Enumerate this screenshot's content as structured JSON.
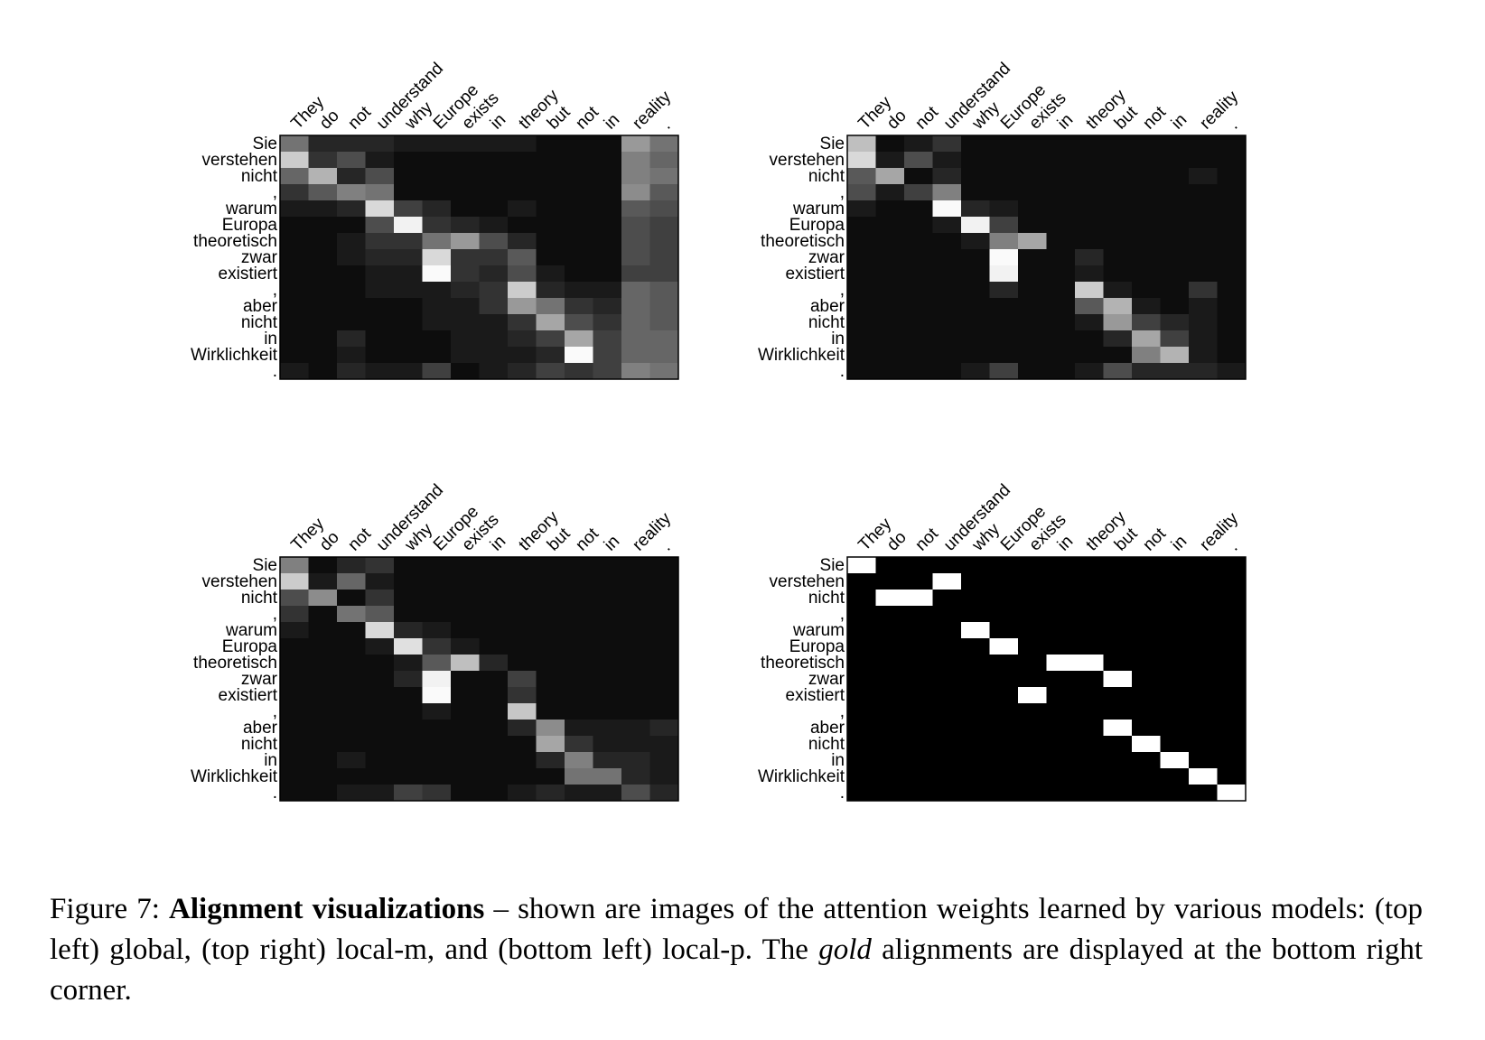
{
  "source_words": [
    "They",
    "do",
    "not",
    "understand",
    "why",
    "Europe",
    "exists",
    "in",
    "theory",
    "but",
    "not",
    "in",
    "reality",
    "."
  ],
  "target_words": [
    "Sie",
    "verstehen",
    "nicht",
    ",",
    "warum",
    "Europa",
    "theoretisch",
    "zwar",
    "existiert",
    ",",
    "aber",
    "nicht",
    "in",
    "Wirklichkeit",
    "."
  ],
  "caption": {
    "lead": "Figure 7: ",
    "bold": "Alignment visualizations",
    "mid": " – shown are images of the attention weights learned by various models: (top left) global, (top right) local-m, and (bottom left) local-p. The ",
    "italic": "gold",
    "tail": " alignments are displayed at the bottom right corner."
  },
  "panels": [
    {
      "id": "global",
      "weights": [
        [
          0.45,
          0.15,
          0.15,
          0.15,
          0.1,
          0.1,
          0.1,
          0.1,
          0.1,
          0.05,
          0.05,
          0.05,
          0.6,
          0.45
        ],
        [
          0.8,
          0.2,
          0.3,
          0.1,
          0.05,
          0.05,
          0.05,
          0.05,
          0.05,
          0.05,
          0.05,
          0.05,
          0.5,
          0.4
        ],
        [
          0.4,
          0.7,
          0.15,
          0.3,
          0.05,
          0.05,
          0.05,
          0.05,
          0.05,
          0.05,
          0.05,
          0.05,
          0.5,
          0.45
        ],
        [
          0.2,
          0.35,
          0.5,
          0.45,
          0.05,
          0.05,
          0.05,
          0.05,
          0.05,
          0.05,
          0.05,
          0.05,
          0.55,
          0.35
        ],
        [
          0.1,
          0.1,
          0.15,
          0.85,
          0.25,
          0.15,
          0.05,
          0.05,
          0.1,
          0.05,
          0.05,
          0.05,
          0.35,
          0.3
        ],
        [
          0.05,
          0.05,
          0.05,
          0.3,
          0.95,
          0.2,
          0.15,
          0.1,
          0.05,
          0.05,
          0.05,
          0.05,
          0.3,
          0.25
        ],
        [
          0.05,
          0.05,
          0.1,
          0.2,
          0.2,
          0.45,
          0.6,
          0.3,
          0.15,
          0.05,
          0.05,
          0.05,
          0.3,
          0.25
        ],
        [
          0.05,
          0.05,
          0.1,
          0.15,
          0.15,
          0.85,
          0.2,
          0.2,
          0.35,
          0.05,
          0.05,
          0.05,
          0.3,
          0.25
        ],
        [
          0.05,
          0.05,
          0.05,
          0.1,
          0.1,
          0.98,
          0.2,
          0.15,
          0.3,
          0.1,
          0.05,
          0.05,
          0.25,
          0.25
        ],
        [
          0.05,
          0.05,
          0.05,
          0.1,
          0.1,
          0.1,
          0.15,
          0.2,
          0.8,
          0.15,
          0.1,
          0.1,
          0.4,
          0.35
        ],
        [
          0.05,
          0.05,
          0.05,
          0.05,
          0.05,
          0.1,
          0.1,
          0.2,
          0.6,
          0.45,
          0.2,
          0.15,
          0.4,
          0.35
        ],
        [
          0.05,
          0.05,
          0.05,
          0.05,
          0.05,
          0.1,
          0.1,
          0.1,
          0.2,
          0.65,
          0.3,
          0.2,
          0.4,
          0.35
        ],
        [
          0.05,
          0.05,
          0.15,
          0.05,
          0.05,
          0.05,
          0.1,
          0.1,
          0.15,
          0.25,
          0.65,
          0.25,
          0.4,
          0.4
        ],
        [
          0.05,
          0.05,
          0.1,
          0.05,
          0.05,
          0.05,
          0.1,
          0.1,
          0.1,
          0.15,
          0.98,
          0.25,
          0.4,
          0.4
        ],
        [
          0.1,
          0.05,
          0.15,
          0.1,
          0.1,
          0.25,
          0.05,
          0.1,
          0.15,
          0.25,
          0.2,
          0.25,
          0.5,
          0.45
        ]
      ]
    },
    {
      "id": "local-m",
      "weights": [
        [
          0.75,
          0.05,
          0.1,
          0.2,
          0.05,
          0.05,
          0.05,
          0.05,
          0.05,
          0.05,
          0.05,
          0.05,
          0.05,
          0.05
        ],
        [
          0.85,
          0.1,
          0.3,
          0.1,
          0.05,
          0.05,
          0.05,
          0.05,
          0.05,
          0.05,
          0.05,
          0.05,
          0.05,
          0.05
        ],
        [
          0.35,
          0.65,
          0.05,
          0.15,
          0.05,
          0.05,
          0.05,
          0.05,
          0.05,
          0.05,
          0.05,
          0.05,
          0.1,
          0.05
        ],
        [
          0.3,
          0.1,
          0.25,
          0.5,
          0.05,
          0.05,
          0.05,
          0.05,
          0.05,
          0.05,
          0.05,
          0.05,
          0.05,
          0.05
        ],
        [
          0.1,
          0.05,
          0.05,
          0.98,
          0.15,
          0.1,
          0.05,
          0.05,
          0.05,
          0.05,
          0.05,
          0.05,
          0.05,
          0.05
        ],
        [
          0.05,
          0.05,
          0.05,
          0.1,
          0.95,
          0.25,
          0.05,
          0.05,
          0.05,
          0.05,
          0.05,
          0.05,
          0.05,
          0.05
        ],
        [
          0.05,
          0.05,
          0.05,
          0.05,
          0.1,
          0.5,
          0.65,
          0.05,
          0.05,
          0.05,
          0.05,
          0.05,
          0.05,
          0.05
        ],
        [
          0.05,
          0.05,
          0.05,
          0.05,
          0.05,
          0.98,
          0.05,
          0.05,
          0.15,
          0.05,
          0.05,
          0.05,
          0.05,
          0.05
        ],
        [
          0.05,
          0.05,
          0.05,
          0.05,
          0.05,
          0.95,
          0.05,
          0.05,
          0.1,
          0.05,
          0.05,
          0.05,
          0.05,
          0.05
        ],
        [
          0.05,
          0.05,
          0.05,
          0.05,
          0.05,
          0.15,
          0.05,
          0.05,
          0.8,
          0.1,
          0.05,
          0.05,
          0.2,
          0.05
        ],
        [
          0.05,
          0.05,
          0.05,
          0.05,
          0.05,
          0.05,
          0.05,
          0.05,
          0.35,
          0.7,
          0.1,
          0.05,
          0.1,
          0.05
        ],
        [
          0.05,
          0.05,
          0.05,
          0.05,
          0.05,
          0.05,
          0.05,
          0.05,
          0.1,
          0.6,
          0.25,
          0.15,
          0.1,
          0.05
        ],
        [
          0.05,
          0.05,
          0.05,
          0.05,
          0.05,
          0.05,
          0.05,
          0.05,
          0.05,
          0.15,
          0.65,
          0.25,
          0.1,
          0.05
        ],
        [
          0.05,
          0.05,
          0.05,
          0.05,
          0.05,
          0.05,
          0.05,
          0.05,
          0.05,
          0.05,
          0.5,
          0.7,
          0.1,
          0.05
        ],
        [
          0.05,
          0.05,
          0.05,
          0.05,
          0.1,
          0.25,
          0.05,
          0.05,
          0.1,
          0.3,
          0.15,
          0.15,
          0.15,
          0.1
        ]
      ]
    },
    {
      "id": "local-p",
      "weights": [
        [
          0.5,
          0.05,
          0.15,
          0.2,
          0.05,
          0.05,
          0.05,
          0.05,
          0.05,
          0.05,
          0.05,
          0.05,
          0.05,
          0.05
        ],
        [
          0.8,
          0.1,
          0.4,
          0.1,
          0.05,
          0.05,
          0.05,
          0.05,
          0.05,
          0.05,
          0.05,
          0.05,
          0.05,
          0.05
        ],
        [
          0.3,
          0.55,
          0.05,
          0.2,
          0.05,
          0.05,
          0.05,
          0.05,
          0.05,
          0.05,
          0.05,
          0.05,
          0.05,
          0.05
        ],
        [
          0.2,
          0.05,
          0.45,
          0.35,
          0.05,
          0.05,
          0.05,
          0.05,
          0.05,
          0.05,
          0.05,
          0.05,
          0.05,
          0.05
        ],
        [
          0.1,
          0.05,
          0.05,
          0.85,
          0.15,
          0.1,
          0.05,
          0.05,
          0.05,
          0.05,
          0.05,
          0.05,
          0.05,
          0.05
        ],
        [
          0.05,
          0.05,
          0.05,
          0.1,
          0.88,
          0.2,
          0.1,
          0.05,
          0.05,
          0.05,
          0.05,
          0.05,
          0.05,
          0.05
        ],
        [
          0.05,
          0.05,
          0.05,
          0.05,
          0.1,
          0.35,
          0.75,
          0.15,
          0.05,
          0.05,
          0.05,
          0.05,
          0.05,
          0.05
        ],
        [
          0.05,
          0.05,
          0.05,
          0.05,
          0.15,
          0.95,
          0.05,
          0.05,
          0.25,
          0.05,
          0.05,
          0.05,
          0.05,
          0.05
        ],
        [
          0.05,
          0.05,
          0.05,
          0.05,
          0.05,
          0.98,
          0.05,
          0.05,
          0.2,
          0.05,
          0.05,
          0.05,
          0.05,
          0.05
        ],
        [
          0.05,
          0.05,
          0.05,
          0.05,
          0.05,
          0.1,
          0.05,
          0.05,
          0.78,
          0.05,
          0.05,
          0.05,
          0.05,
          0.05
        ],
        [
          0.05,
          0.05,
          0.05,
          0.05,
          0.05,
          0.05,
          0.05,
          0.05,
          0.15,
          0.55,
          0.1,
          0.1,
          0.1,
          0.15
        ],
        [
          0.05,
          0.05,
          0.05,
          0.05,
          0.05,
          0.05,
          0.05,
          0.05,
          0.05,
          0.65,
          0.2,
          0.1,
          0.1,
          0.1
        ],
        [
          0.05,
          0.05,
          0.1,
          0.05,
          0.05,
          0.05,
          0.05,
          0.05,
          0.05,
          0.15,
          0.5,
          0.15,
          0.15,
          0.1
        ],
        [
          0.05,
          0.05,
          0.05,
          0.05,
          0.05,
          0.05,
          0.05,
          0.05,
          0.05,
          0.05,
          0.45,
          0.45,
          0.15,
          0.1
        ],
        [
          0.05,
          0.05,
          0.1,
          0.1,
          0.25,
          0.2,
          0.05,
          0.05,
          0.1,
          0.15,
          0.1,
          0.1,
          0.3,
          0.15
        ]
      ]
    },
    {
      "id": "gold",
      "weights": [
        [
          1,
          0,
          0,
          0,
          0,
          0,
          0,
          0,
          0,
          0,
          0,
          0,
          0,
          0
        ],
        [
          0,
          0,
          0,
          1,
          0,
          0,
          0,
          0,
          0,
          0,
          0,
          0,
          0,
          0
        ],
        [
          0,
          1,
          1,
          0,
          0,
          0,
          0,
          0,
          0,
          0,
          0,
          0,
          0,
          0
        ],
        [
          0,
          0,
          0,
          0,
          0,
          0,
          0,
          0,
          0,
          0,
          0,
          0,
          0,
          0
        ],
        [
          0,
          0,
          0,
          0,
          1,
          0,
          0,
          0,
          0,
          0,
          0,
          0,
          0,
          0
        ],
        [
          0,
          0,
          0,
          0,
          0,
          1,
          0,
          0,
          0,
          0,
          0,
          0,
          0,
          0
        ],
        [
          0,
          0,
          0,
          0,
          0,
          0,
          0,
          1,
          1,
          0,
          0,
          0,
          0,
          0
        ],
        [
          0,
          0,
          0,
          0,
          0,
          0,
          0,
          0,
          0,
          1,
          0,
          0,
          0,
          0
        ],
        [
          0,
          0,
          0,
          0,
          0,
          0,
          1,
          0,
          0,
          0,
          0,
          0,
          0,
          0
        ],
        [
          0,
          0,
          0,
          0,
          0,
          0,
          0,
          0,
          0,
          0,
          0,
          0,
          0,
          0
        ],
        [
          0,
          0,
          0,
          0,
          0,
          0,
          0,
          0,
          0,
          1,
          0,
          0,
          0,
          0
        ],
        [
          0,
          0,
          0,
          0,
          0,
          0,
          0,
          0,
          0,
          0,
          1,
          0,
          0,
          0
        ],
        [
          0,
          0,
          0,
          0,
          0,
          0,
          0,
          0,
          0,
          0,
          0,
          1,
          0,
          0
        ],
        [
          0,
          0,
          0,
          0,
          0,
          0,
          0,
          0,
          0,
          0,
          0,
          0,
          1,
          0
        ],
        [
          0,
          0,
          0,
          0,
          0,
          0,
          0,
          0,
          0,
          0,
          0,
          0,
          0,
          1
        ]
      ]
    }
  ]
}
